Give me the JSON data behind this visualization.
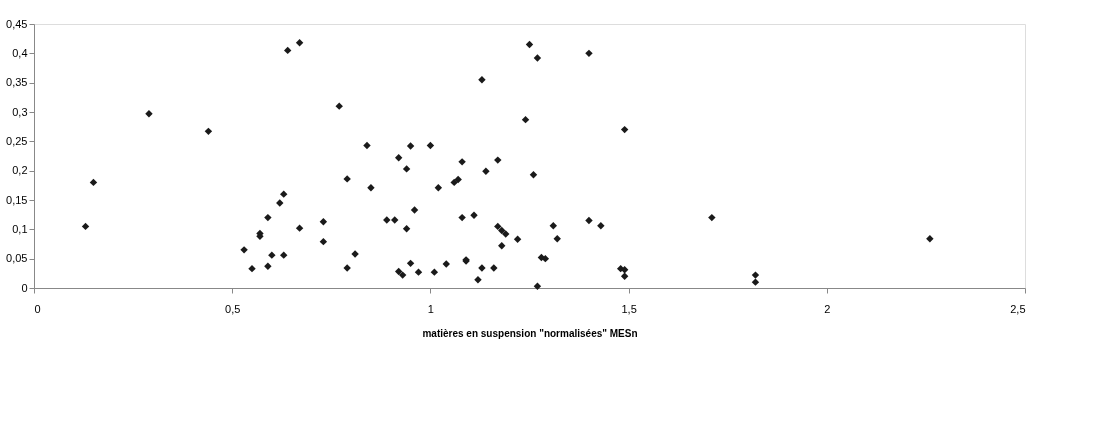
{
  "chart_data": {
    "type": "scatter",
    "xlabel": "matières en suspension \"normalisées\" MESn",
    "xlim": [
      0,
      2.5
    ],
    "xticks": [
      {
        "value": 0,
        "label": "0"
      },
      {
        "value": 0.5,
        "label": "0,5"
      },
      {
        "value": 1,
        "label": "1"
      },
      {
        "value": 1.5,
        "label": "1,5"
      },
      {
        "value": 2,
        "label": "2"
      },
      {
        "value": 2.5,
        "label": "2,5"
      }
    ],
    "ylim": [
      0,
      0.45
    ],
    "yticks": [
      {
        "value": 0,
        "label": "0"
      },
      {
        "value": 0.05,
        "label": "0,05"
      },
      {
        "value": 0.1,
        "label": "0,1"
      },
      {
        "value": 0.15,
        "label": "0,15"
      },
      {
        "value": 0.2,
        "label": "0,2"
      },
      {
        "value": 0.25,
        "label": "0,25"
      },
      {
        "value": 0.3,
        "label": "0,3"
      },
      {
        "value": 0.35,
        "label": "0,35"
      },
      {
        "value": 0.4,
        "label": "0,4"
      },
      {
        "value": 0.45,
        "label": "0,45"
      }
    ],
    "grid": false,
    "marker": "diamond",
    "series": [
      {
        "color": "#1a1a1a",
        "x": [
          0.13,
          0.15,
          0.29,
          0.44,
          0.53,
          0.55,
          0.57,
          0.57,
          0.59,
          0.59,
          0.6,
          0.62,
          0.63,
          0.63,
          0.64,
          0.67,
          0.67,
          0.73,
          0.73,
          0.77,
          0.79,
          0.79,
          0.81,
          0.84,
          0.85,
          0.89,
          0.91,
          0.92,
          0.92,
          0.93,
          0.94,
          0.94,
          0.95,
          0.95,
          0.96,
          0.97,
          1.0,
          1.01,
          1.02,
          1.04,
          1.06,
          1.07,
          1.08,
          1.08,
          1.09,
          1.09,
          1.11,
          1.12,
          1.13,
          1.13,
          1.14,
          1.16,
          1.17,
          1.17,
          1.18,
          1.18,
          1.19,
          1.22,
          1.24,
          1.25,
          1.26,
          1.27,
          1.27,
          1.28,
          1.29,
          1.31,
          1.32,
          1.4,
          1.4,
          1.43,
          1.49,
          1.48,
          1.49,
          1.49,
          1.71,
          1.82,
          1.82,
          2.26
        ],
        "values": [
          0.105,
          0.18,
          0.297,
          0.267,
          0.065,
          0.033,
          0.093,
          0.088,
          0.037,
          0.12,
          0.056,
          0.145,
          0.16,
          0.056,
          0.405,
          0.418,
          0.102,
          0.113,
          0.079,
          0.31,
          0.186,
          0.034,
          0.058,
          0.243,
          0.171,
          0.116,
          0.116,
          0.222,
          0.028,
          0.022,
          0.203,
          0.101,
          0.042,
          0.242,
          0.133,
          0.027,
          0.243,
          0.027,
          0.171,
          0.041,
          0.18,
          0.185,
          0.215,
          0.12,
          0.046,
          0.048,
          0.124,
          0.014,
          0.355,
          0.034,
          0.199,
          0.034,
          0.218,
          0.105,
          0.098,
          0.072,
          0.092,
          0.083,
          0.287,
          0.415,
          0.193,
          0.392,
          0.003,
          0.052,
          0.05,
          0.106,
          0.084,
          0.4,
          0.115,
          0.106,
          0.27,
          0.033,
          0.031,
          0.02,
          0.12,
          0.022,
          0.01,
          0.084
        ]
      }
    ]
  }
}
